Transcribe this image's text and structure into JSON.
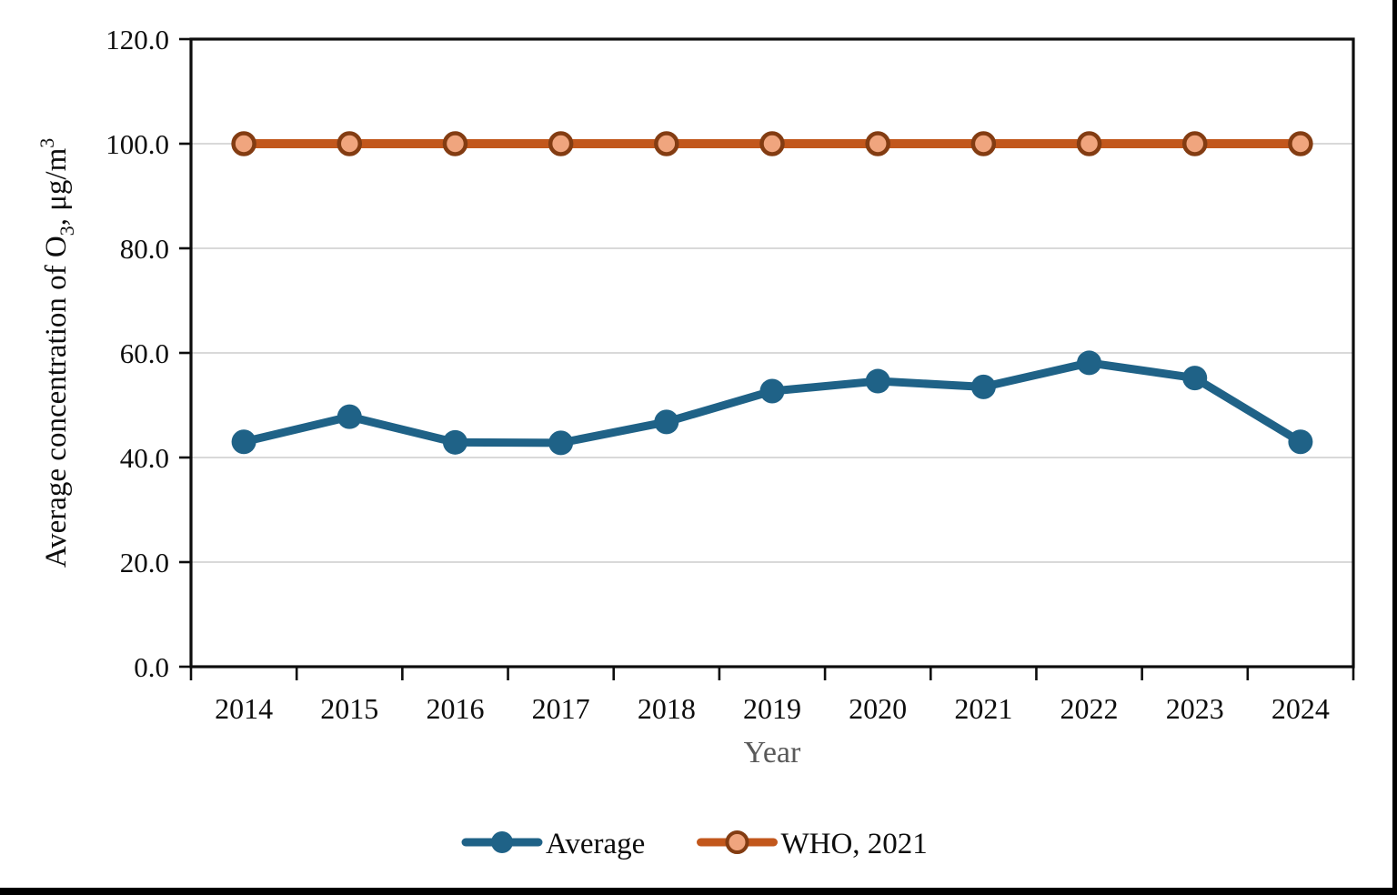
{
  "chart_data": {
    "type": "line",
    "title": "",
    "categories": [
      "2014",
      "2015",
      "2016",
      "2017",
      "2018",
      "2019",
      "2020",
      "2021",
      "2022",
      "2023",
      "2024"
    ],
    "series": [
      {
        "name": "Average",
        "color": "#1F6287",
        "marker": {
          "style": "solid"
        },
        "values": [
          43.0,
          47.8,
          42.9,
          42.8,
          46.8,
          52.7,
          54.6,
          53.5,
          58.1,
          55.2,
          43.0
        ]
      },
      {
        "name": "WHO, 2021",
        "color": "#C2571C",
        "marker": {
          "style": "outlined",
          "fill": "#F0A57E",
          "stroke": "#833C12"
        },
        "values": [
          100.0,
          100.0,
          100.0,
          100.0,
          100.0,
          100.0,
          100.0,
          100.0,
          100.0,
          100.0,
          100.0
        ]
      }
    ],
    "xlabel": "Year",
    "ylabel": "Average concentration of O₃, μg/m³",
    "ylabel_parts": [
      {
        "text": "Average concentration of O",
        "script": "normal"
      },
      {
        "text": "3",
        "script": "sub"
      },
      {
        "text": ", μg/m",
        "script": "normal"
      },
      {
        "text": "3",
        "script": "sup"
      }
    ],
    "ylim": [
      0,
      120
    ],
    "ytick_step": 20,
    "ytick_labels": [
      "0.0",
      "20.0",
      "40.0",
      "60.0",
      "80.0",
      "100.0",
      "120.0"
    ],
    "grid": "horizontal",
    "legend": {
      "position": "bottom",
      "entries": [
        "Average",
        "WHO, 2021"
      ]
    },
    "colors": {
      "grid": "#D9D9D9",
      "axis": "#0D0D0D",
      "tick_label": "#0D0D0D",
      "xlabel": "#595959",
      "background": "#FFFFFF",
      "edge_bar": "#000000"
    }
  }
}
